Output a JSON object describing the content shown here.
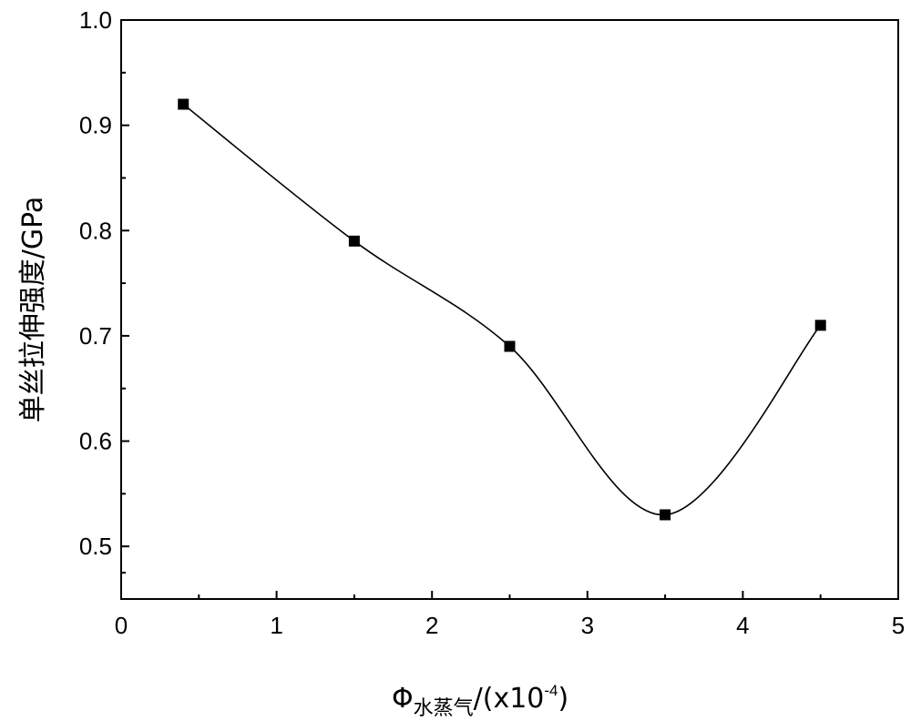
{
  "chart_data": {
    "type": "line",
    "x": [
      0.4,
      1.5,
      2.5,
      3.5,
      4.5
    ],
    "series": [
      {
        "values": [
          0.92,
          0.79,
          0.69,
          0.53,
          0.71
        ]
      }
    ],
    "xlim": [
      0,
      5
    ],
    "ylim": [
      0.45,
      1.0
    ],
    "x_ticks": [
      "0",
      "1",
      "2",
      "3",
      "4",
      "5"
    ],
    "y_ticks": [
      "0.5",
      "0.6",
      "0.7",
      "0.8",
      "0.9",
      "1.0"
    ],
    "xlabel": {
      "main": "Φ",
      "subscript": "水蒸气",
      "suffix": "/(x10",
      "superscript": "-4",
      "close": ")"
    },
    "ylabel": "单丝拉伸强度/GPa",
    "marker": "square",
    "line_style": "smooth",
    "grid": false,
    "legend": "none",
    "colors": {
      "line": "#000000",
      "marker": "#000000",
      "axis": "#000000"
    }
  }
}
